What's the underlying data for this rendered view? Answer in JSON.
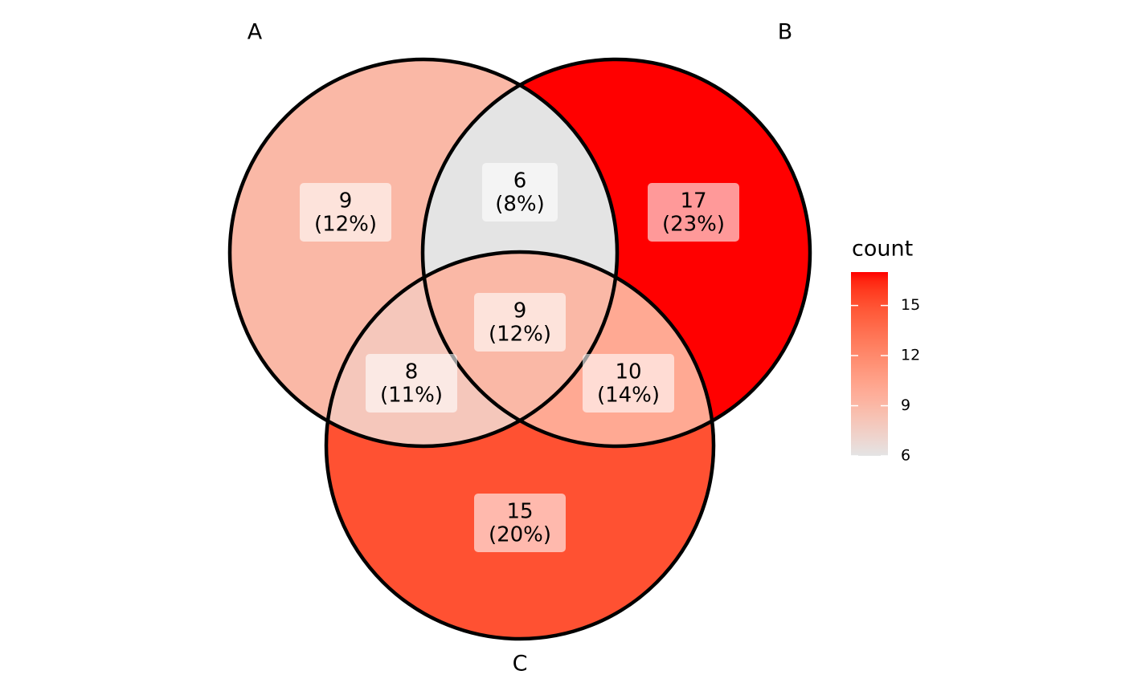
{
  "chart_data": {
    "type": "venn",
    "sets": [
      "A",
      "B",
      "C"
    ],
    "values": [
      9,
      17,
      15,
      6,
      8,
      10,
      9
    ],
    "percent": {
      "values": [
        12,
        23,
        20,
        8,
        11,
        14,
        12
      ],
      "value_labels": [
        "(12%)",
        "(23%)",
        "(20%)",
        "(8%)",
        "(11%)",
        "(14%)",
        "(12%)"
      ]
    },
    "legend_title": "count",
    "color_scale": {
      "low": "#e4e4e4",
      "high": "#ff0000",
      "lim": [
        6,
        17
      ],
      "ticks": [
        6,
        9,
        12,
        15
      ]
    }
  }
}
